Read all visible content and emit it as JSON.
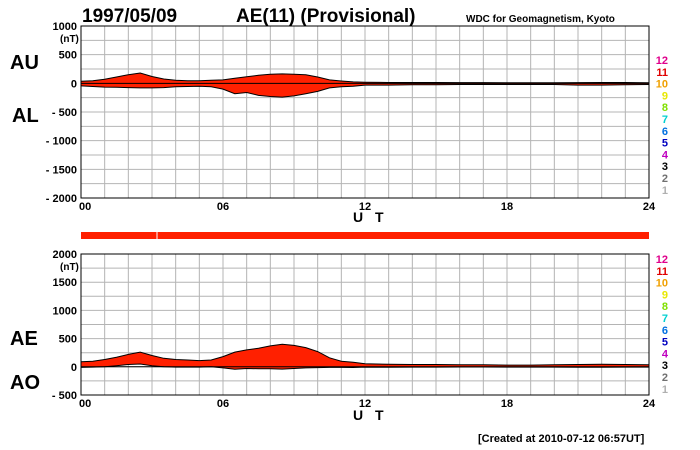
{
  "header": {
    "date": "1997/05/09",
    "index": "AE(11) (Provisional)",
    "org": "WDC for Geomagnetism, Kyoto"
  },
  "footer": {
    "created": "[Created at 2010-07-12 06:57UT]"
  },
  "color_scale": {
    "labels": [
      "12",
      "11",
      "10",
      "9",
      "8",
      "7",
      "6",
      "5",
      "4",
      "3",
      "2",
      "1"
    ],
    "colors": [
      "#e0008c",
      "#e00000",
      "#f0a000",
      "#e8e800",
      "#80e000",
      "#00d0d0",
      "#0070e0",
      "#0000c0",
      "#c000c0",
      "#000000",
      "#707070",
      "#b0b0b0"
    ]
  },
  "chart_data": [
    {
      "type": "area",
      "panel": "AU-AL",
      "labels": {
        "upper": "AU",
        "lower": "AL"
      },
      "unit": "(nT)",
      "xlabel": "U T",
      "xlim": [
        0,
        24
      ],
      "xticks": [
        "00",
        "06",
        "12",
        "18",
        "24"
      ],
      "ylim": [
        -2000,
        1000
      ],
      "yticks": [
        "1000",
        "500",
        "0",
        "- 500",
        "- 1000",
        "- 1500",
        "- 2000"
      ],
      "ytick_values": [
        1000,
        500,
        0,
        -500,
        -1000,
        -1500,
        -2000
      ],
      "fill_color": "#ff2000",
      "series": [
        {
          "name": "AU",
          "x": [
            0,
            0.5,
            1,
            1.5,
            2,
            2.5,
            3,
            3.5,
            4,
            4.5,
            5,
            5.5,
            6,
            6.5,
            7,
            7.5,
            8,
            8.5,
            9,
            9.5,
            10,
            10.5,
            11,
            11.5,
            12,
            13,
            14,
            15,
            16,
            17,
            18,
            19,
            20,
            21,
            22,
            23,
            24
          ],
          "values": [
            35,
            45,
            70,
            110,
            150,
            180,
            120,
            75,
            55,
            45,
            45,
            55,
            60,
            90,
            115,
            140,
            160,
            165,
            160,
            150,
            110,
            60,
            40,
            25,
            20,
            15,
            15,
            15,
            12,
            12,
            10,
            10,
            10,
            12,
            15,
            15,
            10
          ]
        },
        {
          "name": "AL",
          "x": [
            0,
            0.5,
            1,
            1.5,
            2,
            2.5,
            3,
            3.5,
            4,
            4.5,
            5,
            5.5,
            6,
            6.5,
            7,
            7.5,
            8,
            8.5,
            9,
            9.5,
            10,
            10.5,
            11,
            11.5,
            12,
            13,
            14,
            15,
            16,
            17,
            18,
            19,
            20,
            21,
            22,
            23,
            24
          ],
          "values": [
            -45,
            -55,
            -65,
            -70,
            -75,
            -80,
            -80,
            -75,
            -60,
            -55,
            -50,
            -60,
            -100,
            -180,
            -160,
            -210,
            -230,
            -240,
            -220,
            -180,
            -140,
            -80,
            -60,
            -50,
            -30,
            -30,
            -25,
            -25,
            -20,
            -20,
            -20,
            -20,
            -20,
            -30,
            -30,
            -25,
            -20
          ]
        }
      ]
    },
    {
      "type": "area",
      "panel": "AE-AO",
      "labels": {
        "upper": "AE",
        "lower": "AO"
      },
      "unit": "(nT)",
      "xlabel": "U T",
      "xlim": [
        0,
        24
      ],
      "xticks": [
        "00",
        "06",
        "12",
        "18",
        "24"
      ],
      "ylim": [
        -500,
        2000
      ],
      "yticks": [
        "2000",
        "1500",
        "1000",
        "500",
        "0",
        "- 500"
      ],
      "ytick_values": [
        2000,
        1500,
        1000,
        500,
        0,
        -500
      ],
      "fill_color": "#ff2000",
      "series": [
        {
          "name": "AE",
          "x": [
            0,
            0.5,
            1,
            1.5,
            2,
            2.5,
            3,
            3.5,
            4,
            4.5,
            5,
            5.5,
            6,
            6.5,
            7,
            7.5,
            8,
            8.5,
            9,
            9.5,
            10,
            10.5,
            11,
            11.5,
            12,
            13,
            14,
            15,
            16,
            17,
            18,
            19,
            20,
            21,
            22,
            23,
            24
          ],
          "values": [
            90,
            100,
            130,
            170,
            220,
            260,
            200,
            150,
            130,
            120,
            110,
            120,
            180,
            260,
            300,
            330,
            370,
            400,
            380,
            340,
            270,
            160,
            100,
            80,
            55,
            45,
            40,
            40,
            35,
            35,
            30,
            30,
            35,
            40,
            45,
            40,
            35
          ]
        },
        {
          "name": "AO",
          "x": [
            0,
            0.5,
            1,
            1.5,
            2,
            2.5,
            3,
            3.5,
            4,
            4.5,
            5,
            5.5,
            6,
            6.5,
            7,
            7.5,
            8,
            8.5,
            9,
            9.5,
            10,
            10.5,
            11,
            11.5,
            12,
            13,
            14,
            15,
            16,
            17,
            18,
            19,
            20,
            21,
            22,
            23,
            24
          ],
          "values": [
            -10,
            -5,
            0,
            20,
            40,
            50,
            20,
            0,
            -5,
            -5,
            -5,
            0,
            -20,
            -45,
            -30,
            -35,
            -35,
            -40,
            -30,
            -20,
            -15,
            -10,
            -10,
            -12,
            -5,
            -8,
            -5,
            -5,
            -4,
            -4,
            -5,
            -5,
            -5,
            -9,
            -8,
            -5,
            -5
          ]
        }
      ]
    }
  ],
  "quality_bar": {
    "color": "#ff2000"
  }
}
